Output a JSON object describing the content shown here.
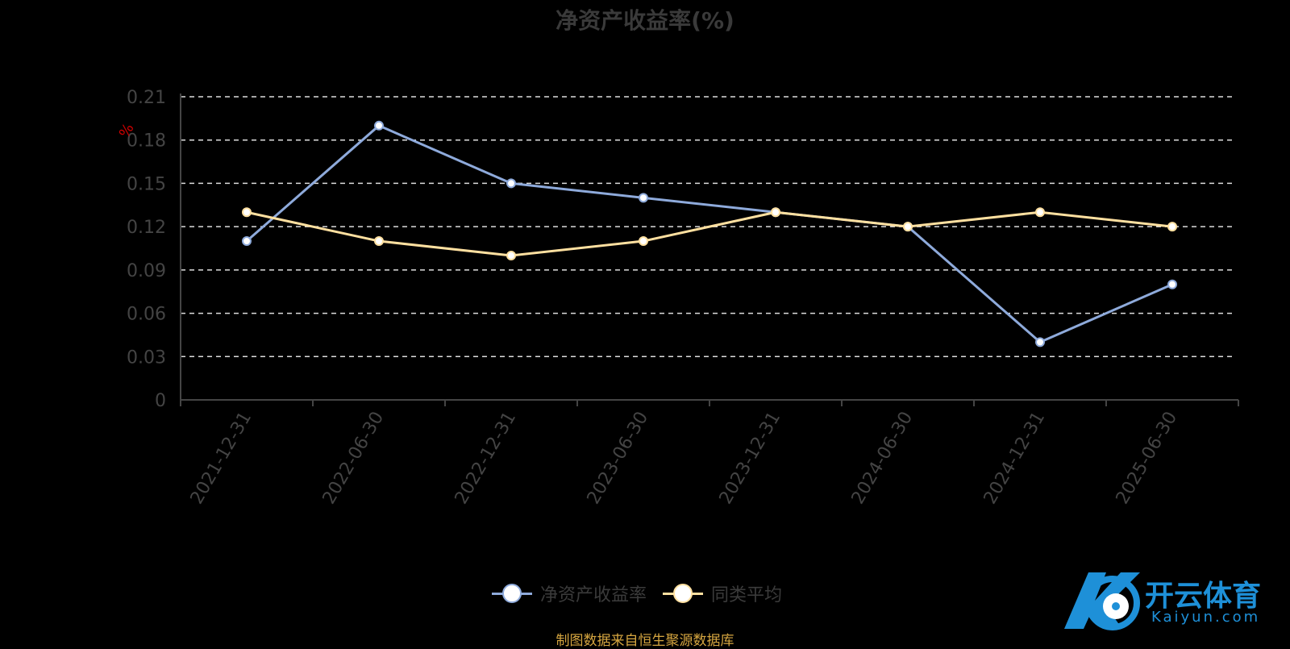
{
  "chart_data": {
    "type": "line",
    "title": "净资产收益率(%)",
    "ylabel": "%",
    "categories": [
      "2021-12-31",
      "2022-06-30",
      "2022-12-31",
      "2023-06-30",
      "2023-12-31",
      "2024-06-30",
      "2024-12-31",
      "2025-06-30"
    ],
    "yticks": [
      "0",
      "0.03",
      "0.06",
      "0.09",
      "0.12",
      "0.15",
      "0.18",
      "0.21"
    ],
    "ylim": [
      0,
      0.21
    ],
    "grid": true,
    "legend_position": "bottom",
    "series": [
      {
        "name": "净资产收益率",
        "color": "#8eaadb",
        "values": [
          0.11,
          0.19,
          0.15,
          0.14,
          0.13,
          0.12,
          0.04,
          0.08
        ]
      },
      {
        "name": "同类平均",
        "color": "#ffe0a0",
        "values": [
          0.13,
          0.11,
          0.1,
          0.11,
          0.13,
          0.12,
          0.13,
          0.12
        ]
      }
    ]
  },
  "footer": {
    "source": "制图数据来自恒生聚源数据库"
  },
  "watermark": {
    "brand": "开云体育",
    "domain": "Kaiyun.com"
  },
  "colors": {
    "background": "#000000",
    "axis": "#444444",
    "grid": "#dddddd",
    "source": "#d6a640"
  }
}
